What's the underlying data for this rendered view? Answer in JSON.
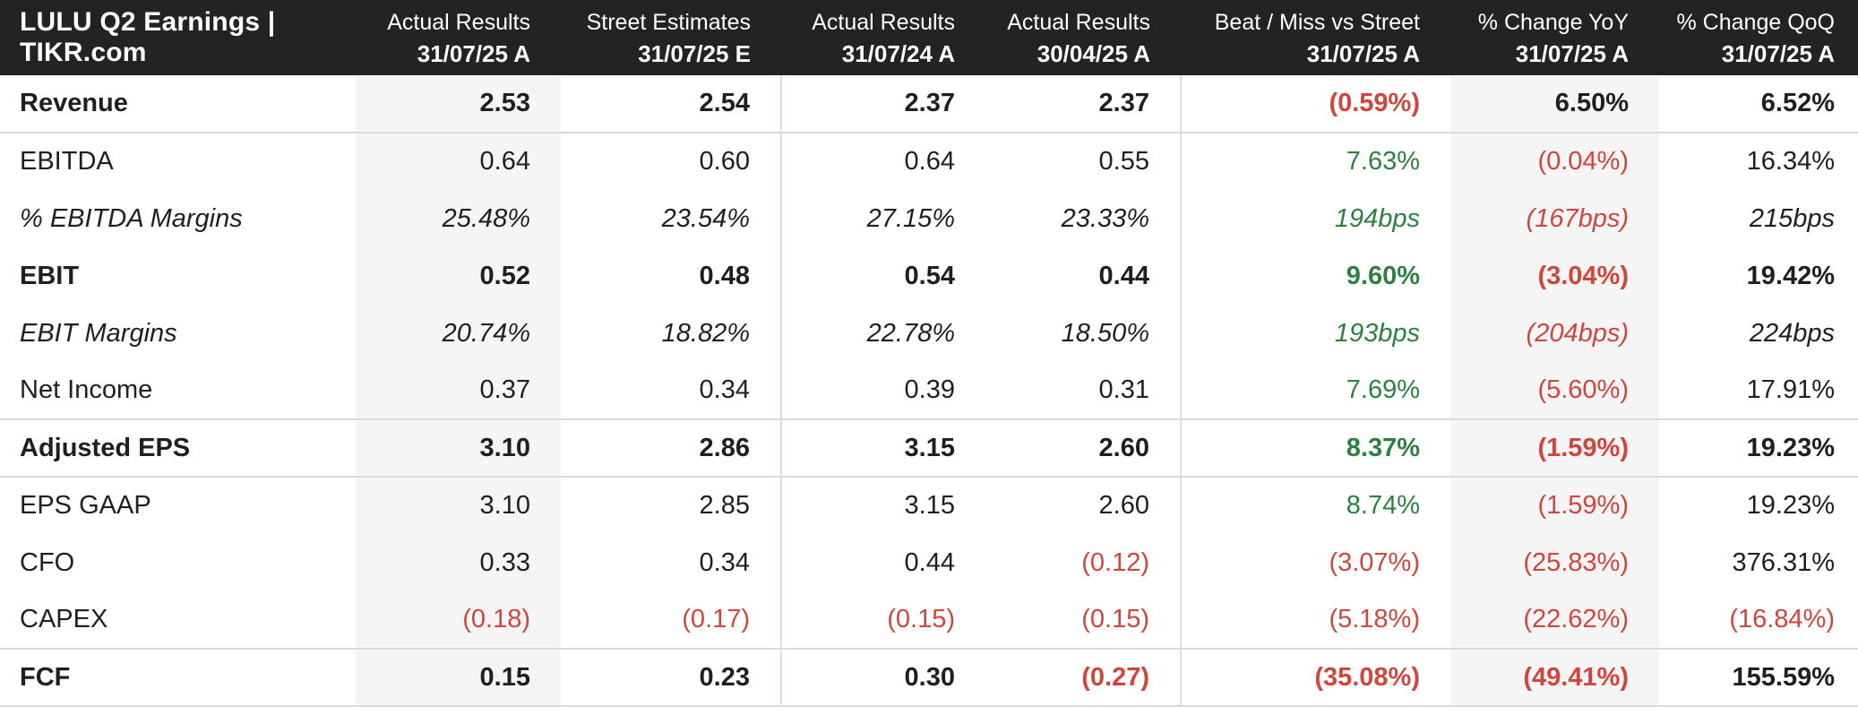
{
  "colors": {
    "positive_green": "#2e8040",
    "negative_red": "#d0463c",
    "text_dark": "#1d1f22",
    "header_background": "#232323",
    "header_text": "#ffffff",
    "section_border": "#d9d9d9",
    "column_separator": "#dedede",
    "column_shade": "#f5f5f6"
  },
  "chart_data": {
    "type": "table",
    "title": "LULU Q2 Earnings | TIKR.com",
    "columns": [
      {
        "label": "Actual Results",
        "date": "31/07/25 A"
      },
      {
        "label": "Street Estimates",
        "date": "31/07/25 E"
      },
      {
        "label": "Actual Results",
        "date": "31/07/24 A"
      },
      {
        "label": "Actual Results",
        "date": "30/04/25 A"
      },
      {
        "label": "Beat / Miss vs Street",
        "date": "31/07/25 A"
      },
      {
        "label": "% Change YoY",
        "date": "31/07/25 A"
      },
      {
        "label": "% Change QoQ",
        "date": "31/07/25 A"
      }
    ],
    "rows": [
      {
        "label": "Revenue",
        "emphasis": "bold",
        "section": true,
        "values": [
          "2.53",
          "2.54",
          "2.37",
          "2.37",
          "(0.59%)",
          "6.50%",
          "6.52%"
        ],
        "value_colors": [
          "dark",
          "dark",
          "dark",
          "dark",
          "red",
          "dark",
          "dark"
        ]
      },
      {
        "label": "EBITDA",
        "emphasis": "regular",
        "section": false,
        "values": [
          "0.64",
          "0.60",
          "0.64",
          "0.55",
          "7.63%",
          "(0.04%)",
          "16.34%"
        ],
        "value_colors": [
          "dark",
          "dark",
          "dark",
          "dark",
          "green",
          "red",
          "dark"
        ]
      },
      {
        "label": "% EBITDA Margins",
        "emphasis": "italic",
        "section": false,
        "values": [
          "25.48%",
          "23.54%",
          "27.15%",
          "23.33%",
          "194bps",
          "(167bps)",
          "215bps"
        ],
        "value_colors": [
          "dark",
          "dark",
          "dark",
          "dark",
          "green",
          "red",
          "dark"
        ]
      },
      {
        "label": "EBIT",
        "emphasis": "bold",
        "section": false,
        "values": [
          "0.52",
          "0.48",
          "0.54",
          "0.44",
          "9.60%",
          "(3.04%)",
          "19.42%"
        ],
        "value_colors": [
          "dark",
          "dark",
          "dark",
          "dark",
          "green",
          "red",
          "dark"
        ]
      },
      {
        "label": "EBIT Margins",
        "emphasis": "italic",
        "section": false,
        "values": [
          "20.74%",
          "18.82%",
          "22.78%",
          "18.50%",
          "193bps",
          "(204bps)",
          "224bps"
        ],
        "value_colors": [
          "dark",
          "dark",
          "dark",
          "dark",
          "green",
          "red",
          "dark"
        ]
      },
      {
        "label": "Net Income",
        "emphasis": "regular",
        "section": false,
        "values": [
          "0.37",
          "0.34",
          "0.39",
          "0.31",
          "7.69%",
          "(5.60%)",
          "17.91%"
        ],
        "value_colors": [
          "dark",
          "dark",
          "dark",
          "dark",
          "green",
          "red",
          "dark"
        ]
      },
      {
        "label": "Adjusted EPS",
        "emphasis": "bold",
        "section": true,
        "values": [
          "3.10",
          "2.86",
          "3.15",
          "2.60",
          "8.37%",
          "(1.59%)",
          "19.23%"
        ],
        "value_colors": [
          "dark",
          "dark",
          "dark",
          "dark",
          "green",
          "red",
          "dark"
        ]
      },
      {
        "label": "EPS GAAP",
        "emphasis": "regular",
        "section": false,
        "values": [
          "3.10",
          "2.85",
          "3.15",
          "2.60",
          "8.74%",
          "(1.59%)",
          "19.23%"
        ],
        "value_colors": [
          "dark",
          "dark",
          "dark",
          "dark",
          "green",
          "red",
          "dark"
        ]
      },
      {
        "label": "CFO",
        "emphasis": "regular",
        "section": false,
        "values": [
          "0.33",
          "0.34",
          "0.44",
          "(0.12)",
          "(3.07%)",
          "(25.83%)",
          "376.31%"
        ],
        "value_colors": [
          "dark",
          "dark",
          "dark",
          "red",
          "red",
          "red",
          "dark"
        ]
      },
      {
        "label": "CAPEX",
        "emphasis": "regular",
        "section": false,
        "values": [
          "(0.18)",
          "(0.17)",
          "(0.15)",
          "(0.15)",
          "(5.18%)",
          "(22.62%)",
          "(16.84%)"
        ],
        "value_colors": [
          "red",
          "red",
          "red",
          "red",
          "red",
          "red",
          "red"
        ]
      },
      {
        "label": "FCF",
        "emphasis": "bold",
        "section": true,
        "values": [
          "0.15",
          "0.23",
          "0.30",
          "(0.27)",
          "(35.08%)",
          "(49.41%)",
          "155.59%"
        ],
        "value_colors": [
          "dark",
          "dark",
          "dark",
          "red",
          "red",
          "red",
          "dark"
        ]
      }
    ]
  }
}
